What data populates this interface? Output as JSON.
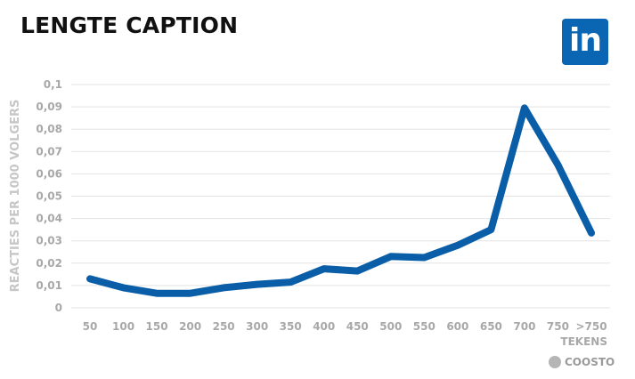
{
  "title": "LENGTE CAPTION",
  "logo": {
    "text": "in",
    "icon": "linkedin-icon",
    "color": "#0a66b2"
  },
  "brand": {
    "text": "COOSTO",
    "icon": "coosto-icon"
  },
  "chart_data": {
    "type": "line",
    "ylabel": "REACTIES PER 1000 VOLGERS",
    "xlabel": "TEKENS",
    "categories": [
      "50",
      "100",
      "150",
      "200",
      "250",
      "300",
      "350",
      "400",
      "450",
      "500",
      "550",
      "600",
      "650",
      "700",
      "750",
      ">750"
    ],
    "series": [
      {
        "values": [
          0.013,
          0.009,
          0.0065,
          0.0065,
          0.009,
          0.0105,
          0.0115,
          0.0175,
          0.0165,
          0.023,
          0.0225,
          0.028,
          0.035,
          0.0895,
          0.064,
          0.0335
        ],
        "color": "#0a5ea8"
      }
    ],
    "ylim": [
      0,
      0.1
    ],
    "yticks": [
      0,
      0.01,
      0.02,
      0.03,
      0.04,
      0.05,
      0.06,
      0.07,
      0.08,
      0.09,
      0.1
    ],
    "ytick_labels": [
      "0",
      "0,01",
      "0,02",
      "0,03",
      "0,04",
      "0,05",
      "0,06",
      "0,07",
      "0,08",
      "0,09",
      "0,1"
    ],
    "grid": true
  }
}
